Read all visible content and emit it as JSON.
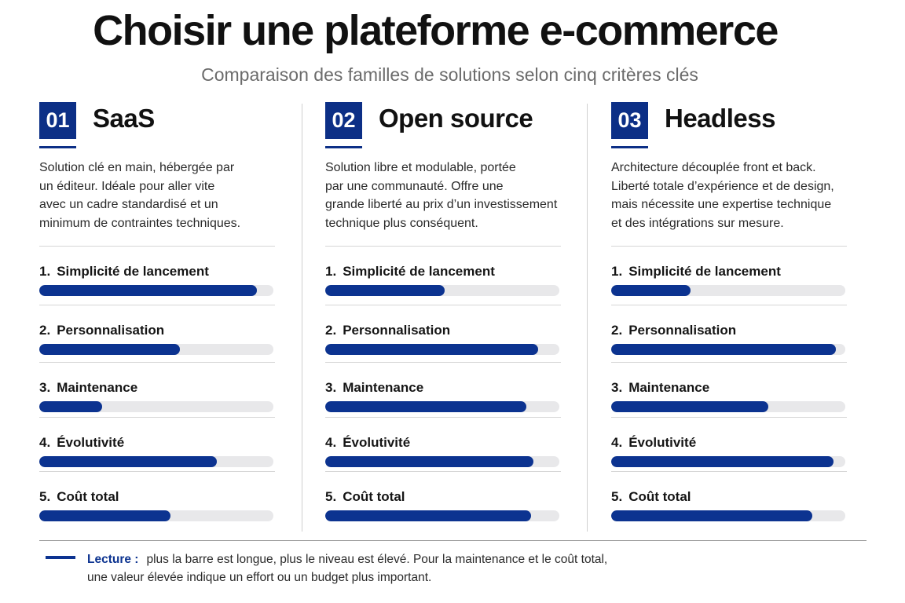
{
  "header": {
    "title": "Choisir une plateforme e-commerce",
    "subtitle": "Comparaison des familles de solutions selon cinq critères clés"
  },
  "colors": {
    "accent": "#0c2f86",
    "bar_fill": "#0c3390",
    "bar_track": "#e8e8ea",
    "title_text": "#111111",
    "subtitle_text": "#6b6b6b"
  },
  "columns": [
    {
      "number": "01",
      "name": "SaaS",
      "description_lines": [
        "Solution clé en main, hébergée par",
        "un éditeur. Idéale pour aller vite",
        "avec un cadre standardisé et un",
        "minimum de contraintes techniques."
      ],
      "criteria": [
        {
          "num": "1.",
          "label": "Simplicité de lancement",
          "level": 0.93
        },
        {
          "num": "2.",
          "label": "Personnalisation",
          "level": 0.6
        },
        {
          "num": "3.",
          "label": "Maintenance",
          "level": 0.27
        },
        {
          "num": "4.",
          "label": "Évolutivité",
          "level": 0.76
        },
        {
          "num": "5.",
          "label": "Coût total",
          "level": 0.56
        }
      ]
    },
    {
      "number": "02",
      "name": "Open source",
      "description_lines": [
        "Solution libre et modulable, portée",
        "par une communauté. Offre une",
        "grande liberté au prix d’un investissement",
        "technique plus conséquent."
      ],
      "criteria": [
        {
          "num": "1.",
          "label": "Simplicité de lancement",
          "level": 0.51
        },
        {
          "num": "2.",
          "label": "Personnalisation",
          "level": 0.91
        },
        {
          "num": "3.",
          "label": "Maintenance",
          "level": 0.86
        },
        {
          "num": "4.",
          "label": "Évolutivité",
          "level": 0.89
        },
        {
          "num": "5.",
          "label": "Coût total",
          "level": 0.88
        }
      ]
    },
    {
      "number": "03",
      "name": "Headless",
      "description_lines": [
        "Architecture découplée front et back.",
        "Liberté totale d’expérience et de design,",
        "mais nécessite une expertise technique",
        "et des intégrations sur mesure."
      ],
      "criteria": [
        {
          "num": "1.",
          "label": "Simplicité de lancement",
          "level": 0.34
        },
        {
          "num": "2.",
          "label": "Personnalisation",
          "level": 0.96
        },
        {
          "num": "3.",
          "label": "Maintenance",
          "level": 0.67
        },
        {
          "num": "4.",
          "label": "Évolutivité",
          "level": 0.95
        },
        {
          "num": "5.",
          "label": "Coût total",
          "level": 0.86
        }
      ]
    }
  ],
  "legend": {
    "key": "Lecture :",
    "line1": "plus la barre est longue, plus le niveau est élevé. Pour la maintenance et le coût total,",
    "line2": "une valeur élevée indique un effort ou un budget plus important."
  }
}
